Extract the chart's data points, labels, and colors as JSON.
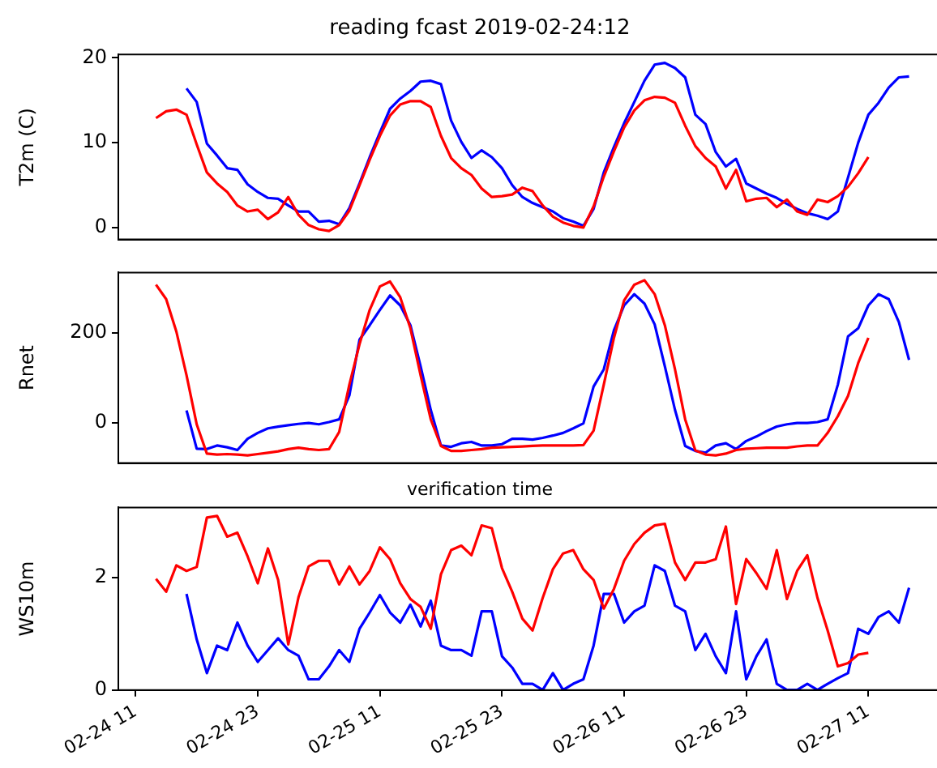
{
  "chart_data": [
    {
      "type": "line",
      "title": "reading fcast 2019-02-24:12",
      "ylabel": "T2m (C)",
      "xlim": [
        "--02-24T09:18",
        "--02-27T18:42"
      ],
      "ylim": [
        -1.4,
        20.4
      ],
      "yticks": [
        0,
        10,
        20
      ],
      "tick_labels": "y",
      "grid": false,
      "legend": false,
      "x": [
        "--02-24T13:00",
        "--02-24T14:00",
        "--02-24T15:00",
        "--02-24T16:00",
        "--02-24T17:00",
        "--02-24T18:00",
        "--02-24T19:00",
        "--02-24T20:00",
        "--02-24T21:00",
        "--02-24T22:00",
        "--02-24T23:00",
        "--02-25T00:00",
        "--02-25T01:00",
        "--02-25T02:00",
        "--02-25T03:00",
        "--02-25T04:00",
        "--02-25T05:00",
        "--02-25T06:00",
        "--02-25T07:00",
        "--02-25T08:00",
        "--02-25T09:00",
        "--02-25T10:00",
        "--02-25T11:00",
        "--02-25T12:00",
        "--02-25T13:00",
        "--02-25T14:00",
        "--02-25T15:00",
        "--02-25T16:00",
        "--02-25T17:00",
        "--02-25T18:00",
        "--02-25T19:00",
        "--02-25T20:00",
        "--02-25T21:00",
        "--02-25T22:00",
        "--02-25T23:00",
        "--02-26T00:00",
        "--02-26T01:00",
        "--02-26T02:00",
        "--02-26T03:00",
        "--02-26T04:00",
        "--02-26T05:00",
        "--02-26T06:00",
        "--02-26T07:00",
        "--02-26T08:00",
        "--02-26T09:00",
        "--02-26T10:00",
        "--02-26T11:00",
        "--02-26T12:00",
        "--02-26T13:00",
        "--02-26T14:00",
        "--02-26T15:00",
        "--02-26T16:00",
        "--02-26T17:00",
        "--02-26T18:00",
        "--02-26T19:00",
        "--02-26T20:00",
        "--02-26T21:00",
        "--02-26T22:00",
        "--02-26T23:00",
        "--02-27T00:00",
        "--02-27T01:00",
        "--02-27T02:00",
        "--02-27T03:00",
        "--02-27T04:00",
        "--02-27T05:00",
        "--02-27T06:00",
        "--02-27T07:00",
        "--02-27T08:00",
        "--02-27T09:00",
        "--02-27T10:00",
        "--02-27T11:00",
        "--02-27T12:00",
        "--02-27T13:00",
        "--02-27T14:00",
        "--02-27T15:00"
      ],
      "series": [
        {
          "color": "#ff0000",
          "values": [
            12.9,
            13.7,
            13.9,
            13.3,
            9.8,
            6.5,
            5.2,
            4.2,
            2.6,
            1.9,
            2.1,
            1.0,
            1.8,
            3.6,
            1.5,
            0.3,
            -0.2,
            -0.4,
            0.3,
            2.0,
            5,
            8,
            10.8,
            13.2,
            14.5,
            14.9,
            14.9,
            14.2,
            10.8,
            8.2,
            7,
            6.2,
            4.6,
            3.6,
            3.7,
            3.9,
            4.7,
            4.3,
            2.6,
            1.3,
            0.6,
            0.2,
            0,
            2.5,
            6,
            9,
            11.8,
            13.8,
            15,
            15.4,
            15.3,
            14.7,
            12,
            9.6,
            8.2,
            7.2,
            4.6,
            6.8,
            3.1,
            3.4,
            3.5,
            2.4,
            3.3,
            1.9,
            1.5,
            3.3,
            3,
            3.7,
            4.8,
            6.4,
            8.3,
            null,
            null,
            null,
            null
          ]
        },
        {
          "color": "#0000ff",
          "values": [
            null,
            null,
            null,
            16.4,
            14.8,
            9.9,
            8.5,
            7.0,
            6.8,
            5.1,
            4.2,
            3.5,
            3.4,
            2.6,
            1.9,
            1.9,
            0.7,
            0.8,
            0.4,
            2.3,
            5.2,
            8.3,
            11.2,
            14,
            15.2,
            16.1,
            17.2,
            17.3,
            16.9,
            12.6,
            10.1,
            8.2,
            9.1,
            8.3,
            7,
            5,
            3.6,
            2.9,
            2.4,
            1.9,
            1.1,
            0.7,
            0.2,
            2.2,
            6.5,
            9.5,
            12.3,
            14.8,
            17.3,
            19.2,
            19.4,
            18.8,
            17.7,
            13.3,
            12.2,
            8.9,
            7.2,
            8.1,
            5.2,
            4.6,
            4,
            3.5,
            2.8,
            2.2,
            1.7,
            1.4,
            1.0,
            1.9,
            5.9,
            10,
            13.3,
            14.7,
            16.5,
            17.7,
            17.8
          ]
        }
      ]
    },
    {
      "type": "line",
      "ylabel": "Rnet",
      "xlim": [
        "--02-24T09:18",
        "--02-27T18:42"
      ],
      "ylim": [
        -89,
        334
      ],
      "yticks": [
        0,
        200
      ],
      "tick_labels": "y",
      "grid": false,
      "legend": false,
      "x": [
        "--02-24T13:00",
        "--02-24T14:00",
        "--02-24T15:00",
        "--02-24T16:00",
        "--02-24T17:00",
        "--02-24T18:00",
        "--02-24T19:00",
        "--02-24T20:00",
        "--02-24T21:00",
        "--02-24T22:00",
        "--02-24T23:00",
        "--02-25T00:00",
        "--02-25T01:00",
        "--02-25T02:00",
        "--02-25T03:00",
        "--02-25T04:00",
        "--02-25T05:00",
        "--02-25T06:00",
        "--02-25T07:00",
        "--02-25T08:00",
        "--02-25T09:00",
        "--02-25T10:00",
        "--02-25T11:00",
        "--02-25T12:00",
        "--02-25T13:00",
        "--02-25T14:00",
        "--02-25T15:00",
        "--02-25T16:00",
        "--02-25T17:00",
        "--02-25T18:00",
        "--02-25T19:00",
        "--02-25T20:00",
        "--02-25T21:00",
        "--02-25T22:00",
        "--02-25T23:00",
        "--02-26T00:00",
        "--02-26T01:00",
        "--02-26T02:00",
        "--02-26T03:00",
        "--02-26T04:00",
        "--02-26T05:00",
        "--02-26T06:00",
        "--02-26T07:00",
        "--02-26T08:00",
        "--02-26T09:00",
        "--02-26T10:00",
        "--02-26T11:00",
        "--02-26T12:00",
        "--02-26T13:00",
        "--02-26T14:00",
        "--02-26T15:00",
        "--02-26T16:00",
        "--02-26T17:00",
        "--02-26T18:00",
        "--02-26T19:00",
        "--02-26T20:00",
        "--02-26T21:00",
        "--02-26T22:00",
        "--02-26T23:00",
        "--02-27T00:00",
        "--02-27T01:00",
        "--02-27T02:00",
        "--02-27T03:00",
        "--02-27T04:00",
        "--02-27T05:00",
        "--02-27T06:00",
        "--02-27T07:00",
        "--02-27T08:00",
        "--02-27T09:00",
        "--02-27T10:00",
        "--02-27T11:00",
        "--02-27T12:00",
        "--02-27T13:00",
        "--02-27T14:00",
        "--02-27T15:00"
      ],
      "series": [
        {
          "color": "#ff0000",
          "values": [
            307,
            275,
            203,
            106,
            -3,
            -68,
            -70,
            -69,
            -70,
            -72,
            -69,
            -66,
            -63,
            -58,
            -55,
            -58,
            -60,
            -58,
            -20,
            85,
            175,
            251,
            303,
            314,
            279,
            210,
            106,
            8,
            -51,
            -62,
            -62,
            -60,
            -58,
            -55,
            -54,
            -53,
            -52,
            -51,
            -50,
            -50,
            -50,
            -50,
            -49,
            -17,
            85,
            189,
            272,
            307,
            317,
            286,
            217,
            119,
            8,
            -61,
            -70,
            -72,
            -68,
            -60,
            -57,
            -56,
            -55,
            -55,
            -55,
            -52,
            -50,
            -50,
            -22,
            15,
            60,
            133,
            189,
            null,
            null,
            null,
            null
          ]
        },
        {
          "color": "#0000ff",
          "values": [
            null,
            null,
            null,
            28,
            -57,
            -58,
            -50,
            -54,
            -60,
            -35,
            -22,
            -12,
            -8,
            -5,
            -2,
            0,
            -3,
            2,
            8,
            61,
            185,
            217,
            251,
            283,
            261,
            217,
            126,
            29,
            -50,
            -53,
            -45,
            -42,
            -50,
            -50,
            -47,
            -35,
            -35,
            -37,
            -33,
            -28,
            -22,
            -12,
            -1,
            81,
            119,
            206,
            261,
            286,
            265,
            219,
            126,
            29,
            -51,
            -62,
            -66,
            -50,
            -45,
            -58,
            -40,
            -30,
            -18,
            -8,
            -3,
            0,
            0,
            2,
            8,
            85,
            192,
            210,
            261,
            286,
            275,
            224,
            140
          ]
        }
      ]
    },
    {
      "type": "line",
      "title": "verification time",
      "ylabel": "WS10m",
      "xlim": [
        "--02-24T09:18",
        "--02-27T18:42"
      ],
      "xticks": [
        {
          "value": "--02-24T11:00",
          "label": "02-24 11"
        },
        {
          "value": "--02-24T23:00",
          "label": "02-24 23"
        },
        {
          "value": "--02-25T11:00",
          "label": "02-25 11"
        },
        {
          "value": "--02-25T23:00",
          "label": "02-25 23"
        },
        {
          "value": "--02-26T11:00",
          "label": "02-26 11"
        },
        {
          "value": "--02-26T23:00",
          "label": "02-26 23"
        },
        {
          "value": "--02-27T11:00",
          "label": "02-27 11"
        }
      ],
      "ylim": [
        0,
        3.25
      ],
      "yticks": [
        0,
        2
      ],
      "grid": false,
      "legend": false,
      "x": [
        "--02-24T13:00",
        "--02-24T14:00",
        "--02-24T15:00",
        "--02-24T16:00",
        "--02-24T17:00",
        "--02-24T18:00",
        "--02-24T19:00",
        "--02-24T20:00",
        "--02-24T21:00",
        "--02-24T22:00",
        "--02-24T23:00",
        "--02-25T00:00",
        "--02-25T01:00",
        "--02-25T02:00",
        "--02-25T03:00",
        "--02-25T04:00",
        "--02-25T05:00",
        "--02-25T06:00",
        "--02-25T07:00",
        "--02-25T08:00",
        "--02-25T09:00",
        "--02-25T10:00",
        "--02-25T11:00",
        "--02-25T12:00",
        "--02-25T13:00",
        "--02-25T14:00",
        "--02-25T15:00",
        "--02-25T16:00",
        "--02-25T17:00",
        "--02-25T18:00",
        "--02-25T19:00",
        "--02-25T20:00",
        "--02-25T21:00",
        "--02-25T22:00",
        "--02-25T23:00",
        "--02-26T00:00",
        "--02-26T01:00",
        "--02-26T02:00",
        "--02-26T03:00",
        "--02-26T04:00",
        "--02-26T05:00",
        "--02-26T06:00",
        "--02-26T07:00",
        "--02-26T08:00",
        "--02-26T09:00",
        "--02-26T10:00",
        "--02-26T11:00",
        "--02-26T12:00",
        "--02-26T13:00",
        "--02-26T14:00",
        "--02-26T15:00",
        "--02-26T16:00",
        "--02-26T17:00",
        "--02-26T18:00",
        "--02-26T19:00",
        "--02-26T20:00",
        "--02-26T21:00",
        "--02-26T22:00",
        "--02-26T23:00",
        "--02-27T00:00",
        "--02-27T01:00",
        "--02-27T02:00",
        "--02-27T03:00",
        "--02-27T04:00",
        "--02-27T05:00",
        "--02-27T06:00",
        "--02-27T07:00",
        "--02-27T08:00",
        "--02-27T09:00",
        "--02-27T10:00",
        "--02-27T11:00",
        "--02-27T12:00",
        "--02-27T13:00",
        "--02-27T14:00",
        "--02-27T15:00"
      ],
      "series": [
        {
          "color": "#ff0000",
          "values": [
            1.98,
            1.75,
            2.22,
            2.12,
            2.19,
            3.07,
            3.1,
            2.73,
            2.8,
            2.38,
            1.9,
            2.52,
            1.96,
            0.81,
            1.65,
            2.2,
            2.3,
            2.3,
            1.88,
            2.2,
            1.88,
            2.12,
            2.54,
            2.33,
            1.9,
            1.62,
            1.48,
            1.09,
            2.06,
            2.49,
            2.57,
            2.4,
            2.93,
            2.88,
            2.17,
            1.75,
            1.27,
            1.06,
            1.64,
            2.15,
            2.43,
            2.49,
            2.15,
            1.96,
            1.45,
            1.8,
            2.3,
            2.6,
            2.8,
            2.93,
            2.96,
            2.27,
            1.96,
            2.27,
            2.27,
            2.33,
            2.91,
            1.53,
            2.33,
            2.08,
            1.8,
            2.49,
            1.62,
            2.12,
            2.4,
            1.64,
            1.06,
            0.42,
            0.48,
            0.63,
            0.66,
            null,
            null,
            null,
            null
          ]
        },
        {
          "color": "#0000ff",
          "values": [
            null,
            null,
            null,
            1.71,
            0.9,
            0.3,
            0.79,
            0.71,
            1.2,
            0.79,
            0.5,
            0.71,
            0.92,
            0.71,
            0.61,
            0.19,
            0.19,
            0.42,
            0.71,
            0.5,
            1.09,
            1.38,
            1.69,
            1.38,
            1.2,
            1.52,
            1.13,
            1.59,
            0.79,
            0.71,
            0.71,
            0.61,
            1.4,
            1.4,
            0.6,
            0.4,
            0.11,
            0.11,
            0,
            0.3,
            0,
            0.11,
            0.19,
            0.79,
            1.71,
            1.71,
            1.2,
            1.4,
            1.5,
            2.22,
            2.12,
            1.5,
            1.4,
            0.71,
            1.0,
            0.6,
            0.3,
            1.4,
            0.19,
            0.6,
            0.9,
            0.11,
            0,
            0,
            0.11,
            0,
            0.11,
            0.21,
            0.3,
            1.09,
            1.0,
            1.3,
            1.4,
            1.2,
            1.82
          ]
        }
      ]
    }
  ]
}
